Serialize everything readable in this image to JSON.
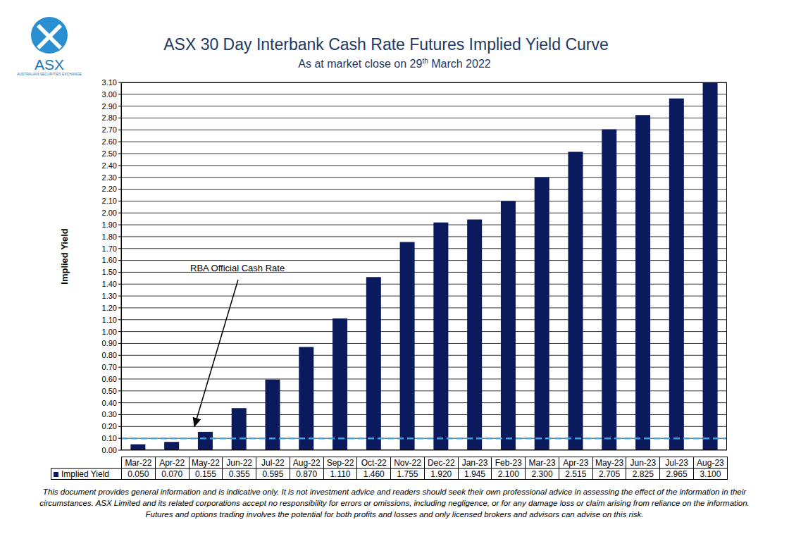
{
  "chart_data": {
    "type": "bar",
    "title": "ASX 30 Day Interbank Cash Rate Futures Implied Yield Curve",
    "subtitle": "As at market close on 29th March 2022",
    "logo": {
      "text": "ASX",
      "subtext": "AUSTRALIAN SECURITIES EXCHANGE"
    },
    "y_label": "Implied Yield",
    "categories": [
      "Mar-22",
      "Apr-22",
      "May-22",
      "Jun-22",
      "Jul-22",
      "Aug-22",
      "Sep-22",
      "Oct-22",
      "Nov-22",
      "Dec-22",
      "Jan-23",
      "Feb-23",
      "Mar-23",
      "Apr-23",
      "May-23",
      "Jun-23",
      "Jul-23",
      "Aug-23"
    ],
    "series": [
      {
        "name": "Implied Yield",
        "color": "#0b1a5c",
        "values": [
          0.05,
          0.07,
          0.155,
          0.355,
          0.595,
          0.87,
          1.11,
          1.46,
          1.755,
          1.92,
          1.945,
          2.1,
          2.3,
          2.515,
          2.705,
          2.825,
          2.965,
          3.1
        ],
        "value_labels": [
          "0.050",
          "0.070",
          "0.155",
          "0.355",
          "0.595",
          "0.870",
          "1.110",
          "1.460",
          "1.755",
          "1.920",
          "1.945",
          "2.100",
          "2.300",
          "2.515",
          "2.705",
          "2.825",
          "2.965",
          "3.100"
        ]
      }
    ],
    "reference_line": {
      "value": 0.1,
      "label": "RBA Official Cash Rate",
      "color": "#3ea6e0",
      "line_style": "dashed"
    },
    "ylim": [
      0,
      3.1
    ],
    "yticks": [
      {
        "value": 0,
        "label": "0.00"
      },
      {
        "value": 0.1,
        "label": "0.10"
      },
      {
        "value": 0.2,
        "label": "0.20"
      },
      {
        "value": 0.3,
        "label": "0.30"
      },
      {
        "value": 0.4,
        "label": "0.40"
      },
      {
        "value": 0.5,
        "label": "0.50"
      },
      {
        "value": 0.6,
        "label": "0.60"
      },
      {
        "value": 0.7,
        "label": "0.70"
      },
      {
        "value": 0.8,
        "label": "0.80"
      },
      {
        "value": 0.9,
        "label": "0.90"
      },
      {
        "value": 1,
        "label": "1.00"
      },
      {
        "value": 1.1,
        "label": "1.10"
      },
      {
        "value": 1.2,
        "label": "1.20"
      },
      {
        "value": 1.3,
        "label": "1.30"
      },
      {
        "value": 1.4,
        "label": "1.40"
      },
      {
        "value": 1.5,
        "label": "1.50"
      },
      {
        "value": 1.6,
        "label": "1.60"
      },
      {
        "value": 1.7,
        "label": "1.70"
      },
      {
        "value": 1.8,
        "label": "1.80"
      },
      {
        "value": 1.9,
        "label": "1.90"
      },
      {
        "value": 2,
        "label": "2.00"
      },
      {
        "value": 2.1,
        "label": "2.10"
      },
      {
        "value": 2.2,
        "label": "2.20"
      },
      {
        "value": 2.3,
        "label": "2.30"
      },
      {
        "value": 2.4,
        "label": "2.40"
      },
      {
        "value": 2.5,
        "label": "2.50"
      },
      {
        "value": 2.6,
        "label": "2.60"
      },
      {
        "value": 2.7,
        "label": "2.70"
      },
      {
        "value": 2.8,
        "label": "2.80"
      },
      {
        "value": 2.9,
        "label": "2.90"
      },
      {
        "value": 3,
        "label": "3.00"
      },
      {
        "value": 3.1,
        "label": "3.10"
      }
    ],
    "grid": true,
    "footnote": "This document provides general information and is indicative only. It is not investment advice and readers should seek their own professional advice in assessing the effect of the information in their circumstances. ASX Limited and its related corporations accept no responsibility for errors or omissions, including negligence, or for any damage loss or claim arising from reliance on the information. Futures and options trading involves the potential for both profits and losses and only licensed brokers and advisors can advise on this risk."
  }
}
